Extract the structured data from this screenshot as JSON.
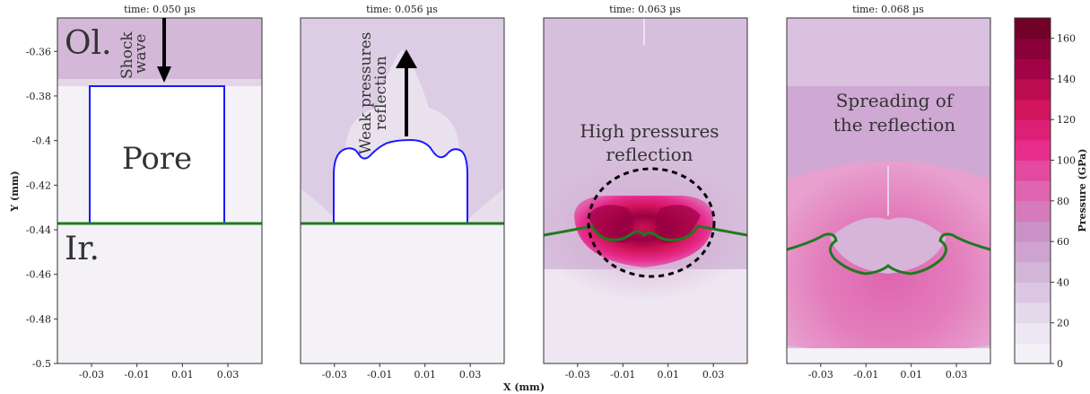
{
  "chart_data": {
    "type": "heatmap",
    "panels": [
      {
        "title": "time: 0.050 µs",
        "time_us": 0.05,
        "annotations": {
          "top_layer": "Ol.",
          "bottom_layer": "Ir.",
          "pore": "Pore",
          "arrow_l1": "Shock",
          "arrow_l2": "wave"
        }
      },
      {
        "title": "time: 0.056 µs",
        "time_us": 0.056,
        "annotations": {
          "l1": "Weak pressures",
          "l2": "reflection"
        }
      },
      {
        "title": "time: 0.063 µs",
        "time_us": 0.063,
        "annotations": {
          "l1": "High pressures",
          "l2": "reflection"
        }
      },
      {
        "title": "time: 0.068 µs",
        "time_us": 0.068,
        "annotations": {
          "l1": "Spreading of",
          "l2": "the reflection"
        }
      }
    ],
    "x_label": "X (mm)",
    "y_label": "Y (mm)",
    "x_ticks": [
      "-0.03",
      "-0.01",
      "0.01",
      "0.03"
    ],
    "y_ticks": [
      "-0.36",
      "-0.38",
      "-0.4",
      "-0.42",
      "-0.44",
      "-0.46",
      "-0.48",
      "-0.5"
    ],
    "xlim": [
      -0.045,
      0.045
    ],
    "ylim": [
      -0.5,
      -0.345
    ],
    "interface_y": -0.44,
    "pore_top_y": -0.38,
    "colorbar": {
      "label": "Pressure (GPa)",
      "ticks": [
        "0",
        "20",
        "40",
        "60",
        "80",
        "100",
        "120",
        "140",
        "160"
      ],
      "range": [
        0,
        170
      ],
      "colors": [
        "#f7f4f9",
        "#e7e1ef",
        "#d4b9da",
        "#c994c7",
        "#df65b0",
        "#e7298a",
        "#ce1256",
        "#980043",
        "#67001f"
      ]
    },
    "colors": {
      "interface_line": "#1e7a1e",
      "pore_outline": "#1a1aff"
    }
  }
}
